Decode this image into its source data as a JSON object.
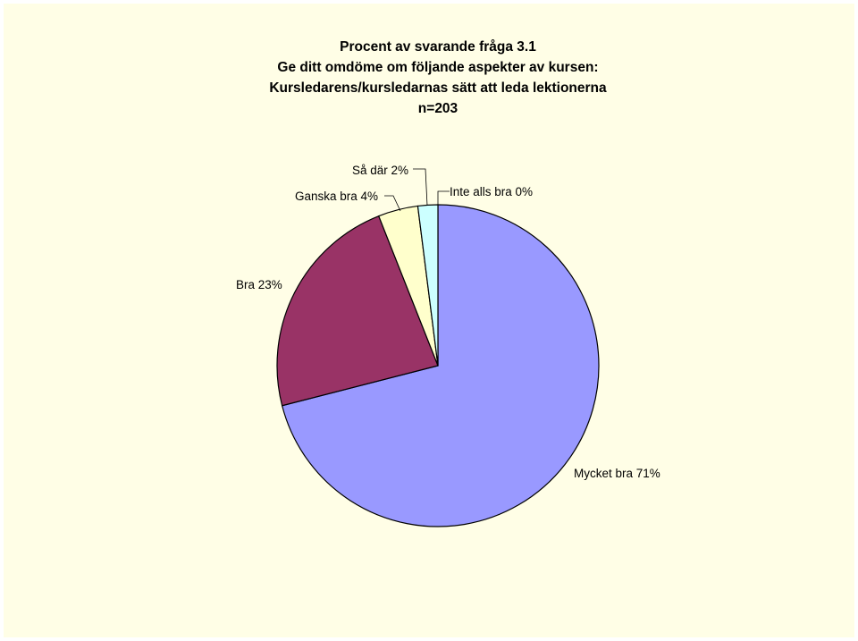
{
  "chart_data": {
    "type": "pie",
    "title_lines": [
      "Procent av svarande fråga 3.1",
      "Ge ditt omdöme om följande aspekter av kursen:",
      "Kursledarens/kursledarnas sätt att leda lektionerna",
      "n=203"
    ],
    "slices": [
      {
        "label": "Mycket bra 71%",
        "value": 71,
        "color": "#9999ff"
      },
      {
        "label": "Bra 23%",
        "value": 23,
        "color": "#993366"
      },
      {
        "label": "Ganska bra 4%",
        "value": 4,
        "color": "#ffffcc"
      },
      {
        "label": "Så där 2%",
        "value": 2,
        "color": "#ccffff"
      },
      {
        "label": "Inte alls bra 0%",
        "value": 0,
        "color": "#ffffff"
      }
    ],
    "legend": "none"
  }
}
